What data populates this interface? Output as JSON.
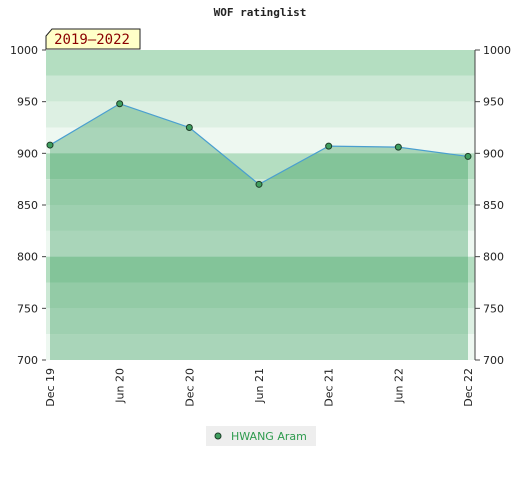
{
  "chart_data": {
    "type": "line",
    "title": "WOF ratinglist",
    "subtitle": "2019–2022",
    "categories": [
      "Dec 19",
      "Jun 20",
      "Dec 20",
      "Jun 21",
      "Dec 21",
      "Jun 22",
      "Dec 22"
    ],
    "series": [
      {
        "name": "HWANG Aram",
        "color": "#4a9fd0",
        "marker_color": "#3f9f5f",
        "values": [
          908,
          948,
          925,
          870,
          907,
          906,
          897
        ]
      }
    ],
    "ylim": [
      700,
      1000
    ],
    "yticks": [
      700,
      750,
      800,
      850,
      900,
      950,
      1000
    ],
    "y2lim": [
      700,
      1000
    ],
    "y2ticks": [
      700,
      750,
      800,
      850,
      900,
      950,
      1000
    ]
  }
}
